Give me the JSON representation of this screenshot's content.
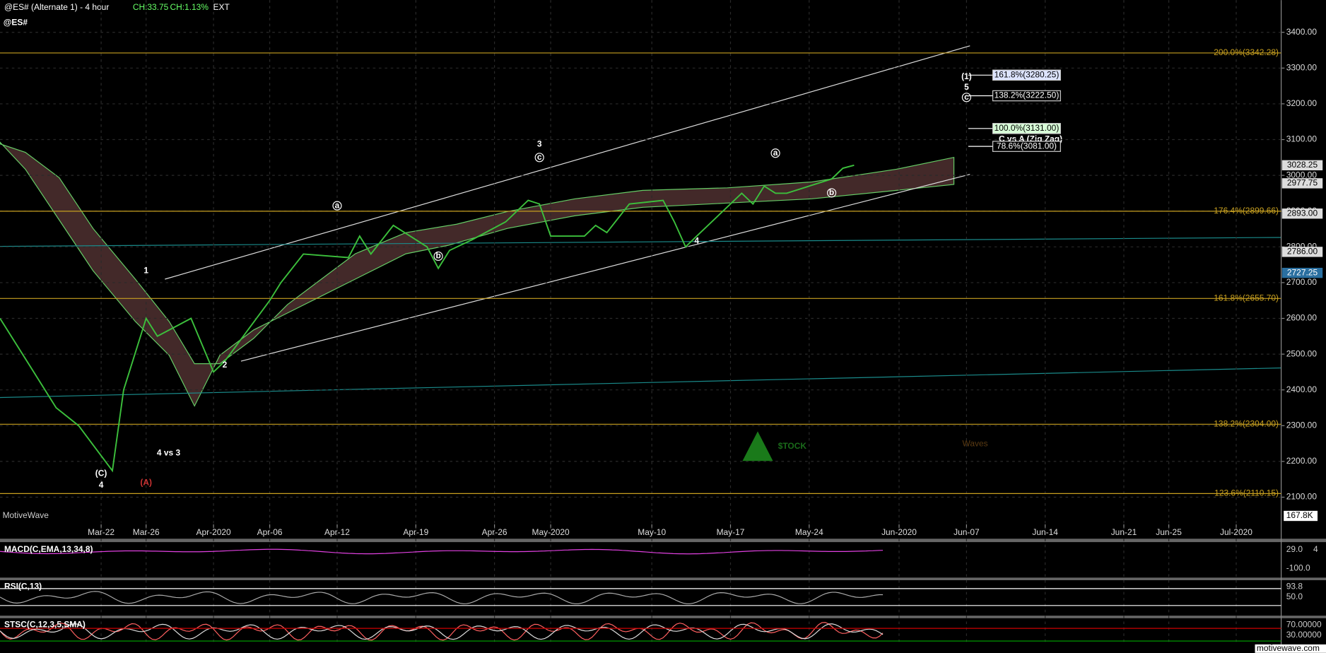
{
  "chart_data": {
    "type": "line",
    "title": "@ES#",
    "subtitle": "@ES# (Alternate 1) - 4 hour",
    "change": "CH:33.75",
    "change_percent": "CH:1.13%",
    "session": "EXT",
    "brand": "MotiveWave",
    "footer": "motivewave.com",
    "volume_label": "167.8K",
    "logo": {
      "left": "$TOCK",
      "right": "Waves"
    },
    "color": "#3cc03c",
    "grid": true,
    "x": [
      "2020-03-13",
      "2020-03-16",
      "2020-03-18",
      "2020-03-20",
      "2020-03-23",
      "2020-03-24",
      "2020-03-26",
      "2020-03-27",
      "2020-03-30",
      "2020-04-01",
      "2020-04-02",
      "2020-04-06",
      "2020-04-07",
      "2020-04-09",
      "2020-04-13",
      "2020-04-14",
      "2020-04-15",
      "2020-04-17",
      "2020-04-20",
      "2020-04-21",
      "2020-04-22",
      "2020-04-24",
      "2020-04-27",
      "2020-04-29",
      "2020-04-30",
      "2020-05-01",
      "2020-05-04",
      "2020-05-05",
      "2020-05-06",
      "2020-05-08",
      "2020-05-11",
      "2020-05-12",
      "2020-05-13",
      "2020-05-14",
      "2020-05-15",
      "2020-05-18",
      "2020-05-19",
      "2020-05-20",
      "2020-05-21",
      "2020-05-22",
      "2020-05-26",
      "2020-05-27",
      "2020-05-28"
    ],
    "values": [
      2600,
      2450,
      2350,
      2300,
      2174,
      2400,
      2600,
      2550,
      2600,
      2450,
      2480,
      2650,
      2700,
      2780,
      2770,
      2830,
      2780,
      2860,
      2800,
      2740,
      2790,
      2820,
      2870,
      2930,
      2920,
      2830,
      2830,
      2860,
      2840,
      2920,
      2930,
      2870,
      2800,
      2830,
      2860,
      2950,
      2920,
      2970,
      2950,
      2950,
      2990,
      3020,
      3028.25
    ],
    "xlim": [
      "2020-03-13",
      "2020-07-05"
    ],
    "xticks": [
      {
        "value": "2020-03-22",
        "label": "Mar-22"
      },
      {
        "value": "2020-03-26",
        "label": "Mar-26"
      },
      {
        "value": "2020-04-01",
        "label": "Apr-2020"
      },
      {
        "value": "2020-04-06",
        "label": "Apr-06"
      },
      {
        "value": "2020-04-12",
        "label": "Apr-12"
      },
      {
        "value": "2020-04-19",
        "label": "Apr-19"
      },
      {
        "value": "2020-04-26",
        "label": "Apr-26"
      },
      {
        "value": "2020-05-01",
        "label": "May-2020"
      },
      {
        "value": "2020-05-10",
        "label": "May-10"
      },
      {
        "value": "2020-05-17",
        "label": "May-17"
      },
      {
        "value": "2020-05-24",
        "label": "May-24"
      },
      {
        "value": "2020-06-01",
        "label": "Jun-2020"
      },
      {
        "value": "2020-06-07",
        "label": "Jun-07"
      },
      {
        "value": "2020-06-14",
        "label": "Jun-14"
      },
      {
        "value": "2020-06-21",
        "label": "Jun-21"
      },
      {
        "value": "2020-06-25",
        "label": "Jun-25"
      },
      {
        "value": "2020-07-01",
        "label": "Jul-2020"
      }
    ],
    "ylim": [
      2024,
      3490
    ],
    "yticks": [
      {
        "value": 2100,
        "label": "2100.00"
      },
      {
        "value": 2200,
        "label": "2200.00"
      },
      {
        "value": 2300,
        "label": "2300.00"
      },
      {
        "value": 2400,
        "label": "2400.00"
      },
      {
        "value": 2500,
        "label": "2500.00"
      },
      {
        "value": 2600,
        "label": "2600.00"
      },
      {
        "value": 2700,
        "label": "2700.00"
      },
      {
        "value": 2800,
        "label": "2800.00"
      },
      {
        "value": 2900,
        "label": "2900.00"
      },
      {
        "value": 3000,
        "label": "3000.00"
      },
      {
        "value": 3100,
        "label": "3100.00"
      },
      {
        "value": 3200,
        "label": "3200.00"
      },
      {
        "value": 3300,
        "label": "3300.00"
      },
      {
        "value": 3400,
        "label": "3400.00"
      }
    ],
    "levels": [
      {
        "value": 3342.28,
        "label": "200.0%(3342.28)"
      },
      {
        "value": 2899.66,
        "label": "176.4%(2899.66)"
      },
      {
        "value": 2655.7,
        "label": "161.8%(2655.70)"
      },
      {
        "value": 2304.0,
        "label": "138.2%(2304.00)"
      },
      {
        "value": 2110.15,
        "label": "123.6%(2110.15)"
      }
    ],
    "targets": [
      {
        "value": 3280.25,
        "label": "161.8%(3280.25)"
      },
      {
        "value": 3222.5,
        "label": "138.2%(3222.50)"
      },
      {
        "value": 3131.0,
        "label": "100.0%(3131.00)"
      },
      {
        "value": 3081.0,
        "label": "78.6%(3081.00)"
      }
    ],
    "target_note": "C vs A (Zig Zag)",
    "price_labels": [
      {
        "value": 3028.25,
        "label": "3028.25"
      },
      {
        "value": 2977.75,
        "label": "2977.75"
      },
      {
        "value": 2893.0,
        "label": "2893.00"
      },
      {
        "value": 2786.0,
        "label": "2786.00"
      },
      {
        "value": 2727.25,
        "label": "2727.25"
      }
    ],
    "wave_labels": [
      {
        "text": "1",
        "x": "2020-03-26",
        "y": 2733
      },
      {
        "text": "2",
        "x": "2020-04-02",
        "y": 2469
      },
      {
        "text": "3",
        "x": "2020-04-30",
        "y": 3086
      },
      {
        "text": "4",
        "x": "2020-05-14",
        "y": 2816
      },
      {
        "text": "(C)",
        "x": "2020-03-22",
        "y": 2166
      },
      {
        "text": "4",
        "x": "2020-03-22",
        "y": 2133
      },
      {
        "text": "(A)",
        "x": "2020-03-26",
        "y": 2140
      },
      {
        "text": "4 vs 3",
        "x": "2020-03-28",
        "y": 2223
      },
      {
        "text": "a",
        "x": "2020-04-12",
        "y": 2915
      },
      {
        "text": "b",
        "x": "2020-04-21",
        "y": 2774
      },
      {
        "text": "c",
        "x": "2020-04-30",
        "y": 3050
      },
      {
        "text": "a",
        "x": "2020-05-21",
        "y": 3062
      },
      {
        "text": "b",
        "x": "2020-05-26",
        "y": 2951
      },
      {
        "text": "(1)",
        "x": "2020-06-07",
        "y": 3275
      },
      {
        "text": "5",
        "x": "2020-06-07",
        "y": 3246
      },
      {
        "text": "c",
        "x": "2020-06-07",
        "y": 3218
      }
    ],
    "panes": [
      {
        "title": "MACD(C,EMA,13,34,8)",
        "labels": [
          "29.0",
          "4",
          "-100.0"
        ]
      },
      {
        "title": "RSI(C,13)",
        "labels": [
          "93.8",
          "50.0"
        ]
      },
      {
        "title": "STSC(C,12,3,5,SMA)",
        "labels": [
          "70.00000",
          "30.00000"
        ]
      }
    ]
  }
}
